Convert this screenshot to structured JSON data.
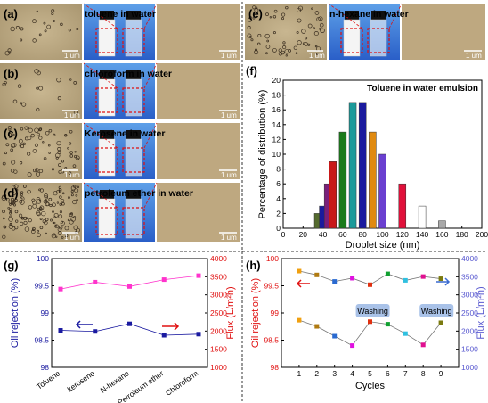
{
  "panels_ae": [
    {
      "letter": "(a)",
      "label": "toluene in water",
      "scale": "1 um"
    },
    {
      "letter": "(b)",
      "label": "chloroform in water",
      "scale": "1 um"
    },
    {
      "letter": "(c)",
      "label": "Kerosene in water",
      "scale": "1 um"
    },
    {
      "letter": "(d)",
      "label": "petroleum ether in water",
      "scale": "1 um"
    },
    {
      "letter": "(e)",
      "label": "n-hexane in water",
      "scale": "1 um"
    }
  ],
  "chart_data": [
    {
      "id": "f",
      "type": "bar",
      "panel_label": "(f)",
      "annotation": "Toluene in water emulsion",
      "xlabel": "Droplet size (nm)",
      "ylabel": "Percentage of distribution (%)",
      "xlim": [
        0,
        200
      ],
      "ylim": [
        0,
        20
      ],
      "xticks": [
        0,
        20,
        40,
        60,
        80,
        100,
        120,
        140,
        160,
        180,
        200
      ],
      "yticks": [
        0,
        2,
        4,
        6,
        8,
        10,
        12,
        14,
        16,
        18,
        20
      ],
      "x": [
        35,
        40,
        45,
        50,
        60,
        70,
        80,
        90,
        100,
        120,
        140,
        160
      ],
      "values": [
        2,
        3,
        6,
        9,
        13,
        17,
        17,
        13,
        10,
        6,
        3,
        1
      ],
      "colors": [
        "#556b2f",
        "#1a1a9e",
        "#7a1f7a",
        "#c81818",
        "#1a7a1a",
        "#1b9a9a",
        "#1a1a9e",
        "#e08a10",
        "#6a3fd0",
        "#e0103a",
        "#ffffff",
        "#a8a8a8"
      ]
    },
    {
      "id": "g",
      "type": "line",
      "panel_label": "(g)",
      "categories": [
        "Toluene",
        "kerosene",
        "N-hexane",
        "Petroleum ether",
        "Chloroform"
      ],
      "ylabel": "Oil rejection (%)",
      "y2label": "Flux (L/m²h)",
      "ylim": [
        98.0,
        100.0
      ],
      "yticks": [
        98.0,
        98.5,
        99.0,
        99.5,
        100.0
      ],
      "y2lim": [
        1000,
        4000
      ],
      "y2ticks": [
        1000,
        1500,
        2000,
        2500,
        3000,
        3500,
        4000
      ],
      "series": [
        {
          "axis": "left",
          "color": "#1a1aa0",
          "values": [
            98.68,
            98.66,
            98.8,
            98.59,
            98.61
          ]
        },
        {
          "axis": "right",
          "color": "#ff33cc",
          "values": [
            3160,
            3350,
            3230,
            3420,
            3530
          ]
        }
      ]
    },
    {
      "id": "h",
      "type": "line",
      "panel_label": "(h)",
      "xlabel": "Cycles",
      "x": [
        1,
        2,
        3,
        4,
        5,
        6,
        7,
        8,
        9
      ],
      "xlim": [
        0,
        10
      ],
      "ylabel": "Oil rejection (%)",
      "y2label": "Flux (L/m²h)",
      "ylim": [
        98.0,
        100.0
      ],
      "yticks": [
        98.0,
        98.5,
        99.0,
        99.5,
        100.0
      ],
      "y2lim": [
        1000,
        4000
      ],
      "y2ticks": [
        1000,
        1500,
        2000,
        2500,
        3000,
        3500,
        4000
      ],
      "annotations": [
        "Washing",
        "Washing"
      ],
      "series": [
        {
          "axis": "left",
          "color": "#555555",
          "values": [
            99.77,
            99.7,
            99.58,
            99.64,
            99.52,
            99.72,
            99.6,
            99.67,
            99.63
          ]
        },
        {
          "axis": "right",
          "color": "#555555",
          "values": [
            2300,
            2130,
            1860,
            1600,
            2260,
            2190,
            1930,
            1620,
            2230
          ]
        }
      ]
    }
  ]
}
